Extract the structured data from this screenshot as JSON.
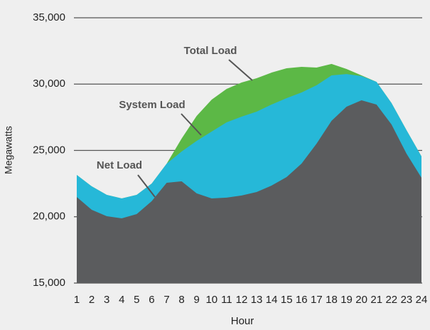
{
  "chart_data": {
    "type": "area",
    "x_label": "Hour",
    "y_label": "Megawatts",
    "x": [
      1,
      2,
      3,
      4,
      5,
      6,
      7,
      8,
      9,
      10,
      11,
      12,
      13,
      14,
      15,
      16,
      17,
      18,
      19,
      20,
      21,
      22,
      23,
      24
    ],
    "xlim": [
      1,
      24
    ],
    "ylim": [
      15000,
      35000
    ],
    "yticks": [
      {
        "value": 15000,
        "label": "15,000"
      },
      {
        "value": 20000,
        "label": "20,000"
      },
      {
        "value": 25000,
        "label": "25,000"
      },
      {
        "value": 30000,
        "label": "30,000"
      },
      {
        "value": 35000,
        "label": "35,000"
      }
    ],
    "grid": true,
    "series": [
      {
        "name": "Total Load",
        "color": "#5cb846",
        "values": [
          23150,
          22290,
          21650,
          21380,
          21650,
          22500,
          24000,
          25900,
          27600,
          28830,
          29640,
          30120,
          30440,
          30870,
          31190,
          31300,
          31250,
          31520,
          31140,
          30660,
          30170,
          28570,
          26530,
          24550
        ]
      },
      {
        "name": "System Load",
        "color": "#26b8d8",
        "values": [
          23150,
          22290,
          21650,
          21380,
          21650,
          22500,
          24000,
          24920,
          25720,
          26420,
          27120,
          27550,
          27920,
          28460,
          28940,
          29370,
          29910,
          30660,
          30760,
          30600,
          30170,
          28570,
          26530,
          24550
        ]
      },
      {
        "name": "Net Load",
        "color": "#5b5c5e",
        "values": [
          21490,
          20520,
          20040,
          19880,
          20200,
          21170,
          22560,
          22670,
          21760,
          21380,
          21440,
          21600,
          21860,
          22350,
          22990,
          24010,
          25510,
          27230,
          28300,
          28780,
          28460,
          26960,
          24760,
          22940
        ]
      }
    ]
  }
}
